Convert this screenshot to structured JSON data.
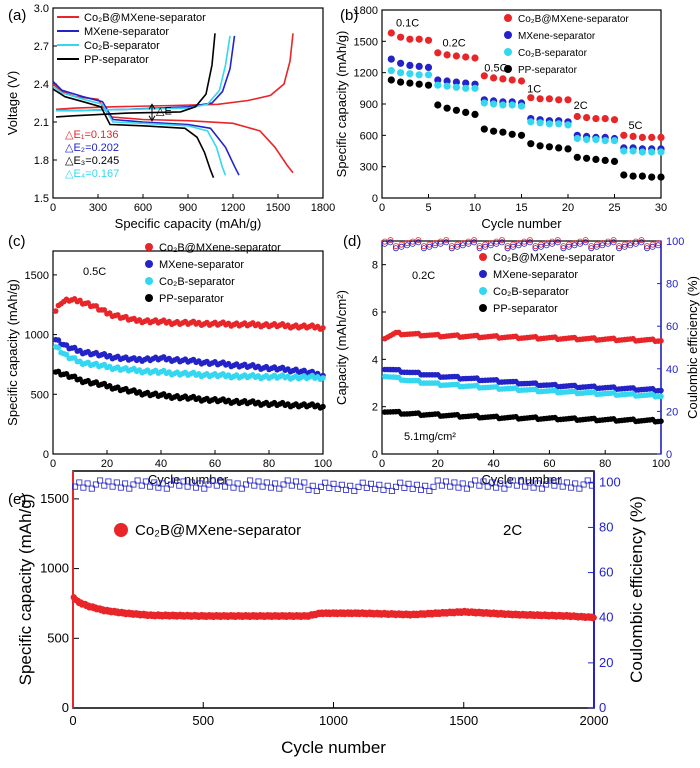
{
  "colors": {
    "red": "#e8262a",
    "blue": "#2323c8",
    "cyan": "#35d7f0",
    "black": "#000000"
  },
  "chart_data": [
    {
      "panel": "(a)",
      "type": "line",
      "xlabel": "Specific capacity (mAh/g)",
      "ylabel": "Voltage (V)",
      "xlim": [
        0,
        1800
      ],
      "ylim": [
        1.5,
        3.0
      ],
      "xticks": [
        "0",
        "300",
        "600",
        "900",
        "1200",
        "1500",
        "1800"
      ],
      "yticks": [
        "1.5",
        "1.8",
        "2.1",
        "2.4",
        "2.7",
        "3.0"
      ],
      "legend": [
        "Co₂B@MXene-separator",
        "MXene-separator",
        "Co₂B-separator",
        "PP-separator"
      ],
      "annotations": [
        "△E",
        "△E₁=0.136",
        "△E₂=0.202",
        "△E₃=0.245",
        "△E₄=0.167"
      ],
      "series": [
        {
          "color": "red",
          "discharge": [
            [
              0,
              2.4
            ],
            [
              60,
              2.34
            ],
            [
              150,
              2.3
            ],
            [
              300,
              2.28
            ],
            [
              380,
              2.14
            ],
            [
              600,
              2.12
            ],
            [
              900,
              2.11
            ],
            [
              1200,
              2.09
            ],
            [
              1380,
              2.03
            ],
            [
              1480,
              1.9
            ],
            [
              1560,
              1.76
            ],
            [
              1600,
              1.7
            ]
          ],
          "charge": [
            [
              20,
              2.2
            ],
            [
              150,
              2.21
            ],
            [
              400,
              2.22
            ],
            [
              800,
              2.23
            ],
            [
              1100,
              2.24
            ],
            [
              1300,
              2.27
            ],
            [
              1450,
              2.31
            ],
            [
              1540,
              2.4
            ],
            [
              1580,
              2.58
            ],
            [
              1600,
              2.8
            ]
          ]
        },
        {
          "color": "blue",
          "discharge": [
            [
              0,
              2.42
            ],
            [
              60,
              2.35
            ],
            [
              200,
              2.3
            ],
            [
              330,
              2.26
            ],
            [
              400,
              2.12
            ],
            [
              600,
              2.1
            ],
            [
              900,
              2.08
            ],
            [
              1050,
              2.05
            ],
            [
              1150,
              1.9
            ],
            [
              1210,
              1.75
            ],
            [
              1240,
              1.68
            ]
          ],
          "charge": [
            [
              20,
              2.19
            ],
            [
              150,
              2.19
            ],
            [
              500,
              2.2
            ],
            [
              900,
              2.22
            ],
            [
              1060,
              2.25
            ],
            [
              1130,
              2.34
            ],
            [
              1180,
              2.52
            ],
            [
              1210,
              2.78
            ]
          ]
        },
        {
          "color": "cyan",
          "discharge": [
            [
              0,
              2.38
            ],
            [
              60,
              2.33
            ],
            [
              200,
              2.28
            ],
            [
              330,
              2.24
            ],
            [
              400,
              2.1
            ],
            [
              600,
              2.09
            ],
            [
              900,
              2.07
            ],
            [
              1030,
              2.03
            ],
            [
              1090,
              1.9
            ],
            [
              1130,
              1.74
            ],
            [
              1150,
              1.68
            ]
          ],
          "charge": [
            [
              20,
              2.19
            ],
            [
              150,
              2.19
            ],
            [
              500,
              2.2
            ],
            [
              900,
              2.21
            ],
            [
              1030,
              2.24
            ],
            [
              1110,
              2.35
            ],
            [
              1150,
              2.55
            ],
            [
              1180,
              2.78
            ]
          ]
        },
        {
          "color": "black",
          "discharge": [
            [
              0,
              2.36
            ],
            [
              80,
              2.3
            ],
            [
              200,
              2.26
            ],
            [
              320,
              2.22
            ],
            [
              380,
              2.08
            ],
            [
              600,
              2.07
            ],
            [
              880,
              2.05
            ],
            [
              960,
              1.98
            ],
            [
              1010,
              1.86
            ],
            [
              1050,
              1.72
            ],
            [
              1070,
              1.66
            ]
          ],
          "charge": [
            [
              20,
              2.14
            ],
            [
              150,
              2.15
            ],
            [
              500,
              2.17
            ],
            [
              850,
              2.18
            ],
            [
              950,
              2.22
            ],
            [
              1020,
              2.32
            ],
            [
              1060,
              2.55
            ],
            [
              1080,
              2.8
            ]
          ]
        }
      ]
    },
    {
      "panel": "(b)",
      "type": "scatter",
      "xlabel": "Cycle number",
      "ylabel": "Specific capacity (mAh/g)",
      "xlim": [
        0,
        30
      ],
      "ylim": [
        0,
        1800
      ],
      "xticks": [
        "0",
        "5",
        "10",
        "15",
        "20",
        "25",
        "30"
      ],
      "yticks": [
        "0",
        "300",
        "600",
        "900",
        "1200",
        "1500",
        "1800"
      ],
      "rate_labels": [
        "0.1C",
        "0.2C",
        "0.5C",
        "1C",
        "2C",
        "5C"
      ],
      "legend": [
        "Co₂B@MXene-separator",
        "MXene-separator",
        "Co₂B-separator",
        "PP-separator"
      ],
      "series": [
        {
          "color": "red",
          "values": [
            1580,
            1540,
            1520,
            1520,
            1510,
            1390,
            1370,
            1360,
            1350,
            1340,
            1170,
            1150,
            1140,
            1130,
            1120,
            960,
            950,
            950,
            940,
            940,
            780,
            770,
            760,
            760,
            750,
            600,
            590,
            580,
            580,
            580
          ]
        },
        {
          "color": "blue",
          "values": [
            1330,
            1290,
            1270,
            1260,
            1250,
            1130,
            1120,
            1110,
            1100,
            1090,
            940,
            930,
            920,
            920,
            910,
            760,
            750,
            740,
            740,
            730,
            600,
            590,
            580,
            580,
            570,
            480,
            480,
            470,
            470,
            470
          ]
        },
        {
          "color": "cyan",
          "values": [
            1220,
            1200,
            1190,
            1180,
            1180,
            1080,
            1070,
            1060,
            1050,
            1050,
            910,
            900,
            890,
            890,
            880,
            730,
            720,
            710,
            710,
            700,
            570,
            560,
            560,
            550,
            550,
            450,
            450,
            440,
            440,
            440
          ]
        },
        {
          "color": "black",
          "values": [
            1130,
            1110,
            1100,
            1090,
            1080,
            890,
            860,
            840,
            820,
            800,
            660,
            640,
            630,
            610,
            600,
            520,
            500,
            490,
            480,
            470,
            390,
            380,
            370,
            360,
            350,
            220,
            210,
            210,
            200,
            200
          ]
        }
      ]
    },
    {
      "panel": "(c)",
      "type": "scatter",
      "xlabel": "Cycle number",
      "ylabel": "Specific capacity (mAh/g)",
      "xlim": [
        0,
        100
      ],
      "ylim": [
        0,
        1700
      ],
      "xticks": [
        "0",
        "20",
        "40",
        "60",
        "80",
        "100"
      ],
      "yticks": [
        "0",
        "500",
        "1000",
        "1500"
      ],
      "rate": "0.5C",
      "legend": [
        "Co₂B@MXene-separator",
        "MXene-separator",
        "Co₂B-separator",
        "PP-separator"
      ],
      "series": [
        {
          "color": "red",
          "points": [
            [
              1,
              1200
            ],
            [
              3,
              1270
            ],
            [
              6,
              1290
            ],
            [
              10,
              1280
            ],
            [
              15,
              1240
            ],
            [
              20,
              1180
            ],
            [
              30,
              1120
            ],
            [
              45,
              1100
            ],
            [
              60,
              1090
            ],
            [
              80,
              1080
            ],
            [
              100,
              1060
            ]
          ]
        },
        {
          "color": "blue",
          "points": [
            [
              1,
              960
            ],
            [
              5,
              900
            ],
            [
              10,
              860
            ],
            [
              20,
              820
            ],
            [
              30,
              790
            ],
            [
              40,
              800
            ],
            [
              50,
              780
            ],
            [
              60,
              760
            ],
            [
              70,
              740
            ],
            [
              80,
              720
            ],
            [
              90,
              700
            ],
            [
              100,
              660
            ]
          ]
        },
        {
          "color": "cyan",
          "points": [
            [
              1,
              900
            ],
            [
              5,
              820
            ],
            [
              10,
              770
            ],
            [
              20,
              730
            ],
            [
              30,
              700
            ],
            [
              50,
              670
            ],
            [
              70,
              650
            ],
            [
              100,
              640
            ]
          ]
        },
        {
          "color": "black",
          "points": [
            [
              1,
              690
            ],
            [
              5,
              660
            ],
            [
              10,
              620
            ],
            [
              20,
              570
            ],
            [
              30,
              520
            ],
            [
              40,
              490
            ],
            [
              60,
              450
            ],
            [
              80,
              420
            ],
            [
              100,
              400
            ]
          ]
        }
      ]
    },
    {
      "panel": "(d)",
      "type": "scatter",
      "xlabel": "Cycle number",
      "ylabel": "Capacity (mAh/cm²)",
      "ylabel_right": "Coulombic efficiency (%)",
      "xlim": [
        0,
        100
      ],
      "ylim": [
        0,
        9
      ],
      "ylim_right": [
        0,
        100
      ],
      "xticks": [
        "0",
        "20",
        "40",
        "60",
        "80",
        "100"
      ],
      "yticks": [
        "0",
        "2",
        "4",
        "6",
        "8"
      ],
      "yticks_right": [
        "0",
        "20",
        "40",
        "60",
        "80",
        "100"
      ],
      "rate": "0.2C",
      "loading": "5.1mg/cm²",
      "legend": [
        "Co₂B@MXene-separator",
        "MXene-separator",
        "Co₂B-separator",
        "PP-separator"
      ],
      "series": [
        {
          "color": "red",
          "points": [
            [
              1,
              4.9
            ],
            [
              5,
              5.1
            ],
            [
              20,
              5.0
            ],
            [
              40,
              4.95
            ],
            [
              60,
              4.9
            ],
            [
              80,
              4.85
            ],
            [
              100,
              4.8
            ]
          ]
        },
        {
          "color": "blue",
          "points": [
            [
              1,
              3.6
            ],
            [
              10,
              3.45
            ],
            [
              20,
              3.3
            ],
            [
              40,
              3.1
            ],
            [
              60,
              2.9
            ],
            [
              80,
              2.8
            ],
            [
              100,
              2.7
            ]
          ]
        },
        {
          "color": "cyan",
          "points": [
            [
              1,
              3.3
            ],
            [
              10,
              3.1
            ],
            [
              20,
              2.95
            ],
            [
              40,
              2.8
            ],
            [
              60,
              2.65
            ],
            [
              80,
              2.55
            ],
            [
              100,
              2.45
            ]
          ]
        },
        {
          "color": "black",
          "points": [
            [
              1,
              1.8
            ],
            [
              10,
              1.7
            ],
            [
              20,
              1.65
            ],
            [
              40,
              1.55
            ],
            [
              60,
              1.5
            ],
            [
              80,
              1.45
            ],
            [
              100,
              1.4
            ]
          ]
        }
      ],
      "ce_series": [
        {
          "color": "red",
          "value": 99
        },
        {
          "color": "blue",
          "value": 98
        }
      ]
    },
    {
      "panel": "(e)",
      "type": "scatter",
      "xlabel": "Cycle number",
      "ylabel": "Specific capacity (mAh/g)",
      "ylabel_right": "Coulombic efficiency (%)",
      "xlim": [
        0,
        2000
      ],
      "ylim": [
        0,
        1700
      ],
      "ylim_right": [
        0,
        105
      ],
      "xticks": [
        "0",
        "500",
        "1000",
        "1500",
        "2000"
      ],
      "yticks": [
        "0",
        "500",
        "1000",
        "1500"
      ],
      "yticks_right": [
        "0",
        "20",
        "40",
        "60",
        "80",
        "100"
      ],
      "rate": "2C",
      "legend": [
        "Co₂B@MXene-separator"
      ],
      "series": [
        {
          "color": "red",
          "points": [
            [
              5,
              790
            ],
            [
              20,
              760
            ],
            [
              60,
              730
            ],
            [
              120,
              700
            ],
            [
              200,
              680
            ],
            [
              300,
              665
            ],
            [
              500,
              660
            ],
            [
              700,
              660
            ],
            [
              900,
              660
            ],
            [
              950,
              680
            ],
            [
              1100,
              680
            ],
            [
              1300,
              670
            ],
            [
              1500,
              690
            ],
            [
              1700,
              670
            ],
            [
              1900,
              660
            ],
            [
              2000,
              650
            ]
          ]
        }
      ],
      "ce": {
        "color": "blue",
        "value": 99
      }
    }
  ]
}
